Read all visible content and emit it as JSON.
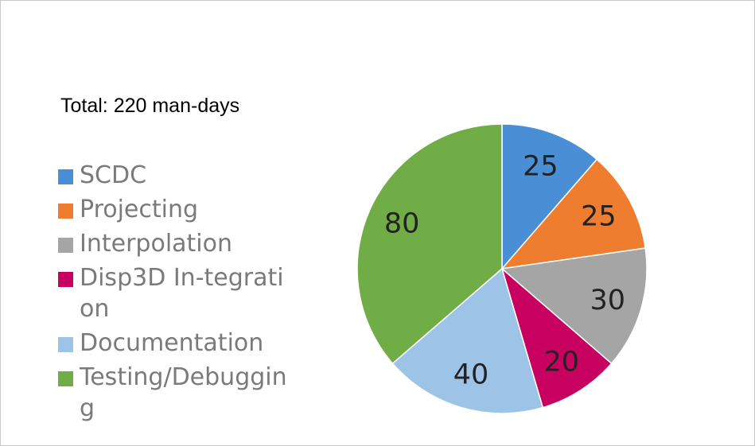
{
  "annotation": {
    "total_text": "Total: 220 man-days"
  },
  "chart_data": {
    "type": "pie",
    "title": "",
    "legend_position": "left",
    "slices": [
      {
        "label": "SCDC",
        "value": 25,
        "color": "#4a8fd6"
      },
      {
        "label": "Projecting",
        "value": 25,
        "color": "#ee7d30"
      },
      {
        "label": "Interpolation",
        "value": 30,
        "color": "#a5a5a5"
      },
      {
        "label": "Disp3D In-tegration",
        "value": 20,
        "color": "#c8005f"
      },
      {
        "label": "Documentation",
        "value": 40,
        "color": "#9dc3e6"
      },
      {
        "label": "Testing/Debugging",
        "value": 80,
        "color": "#70ad47"
      }
    ]
  }
}
